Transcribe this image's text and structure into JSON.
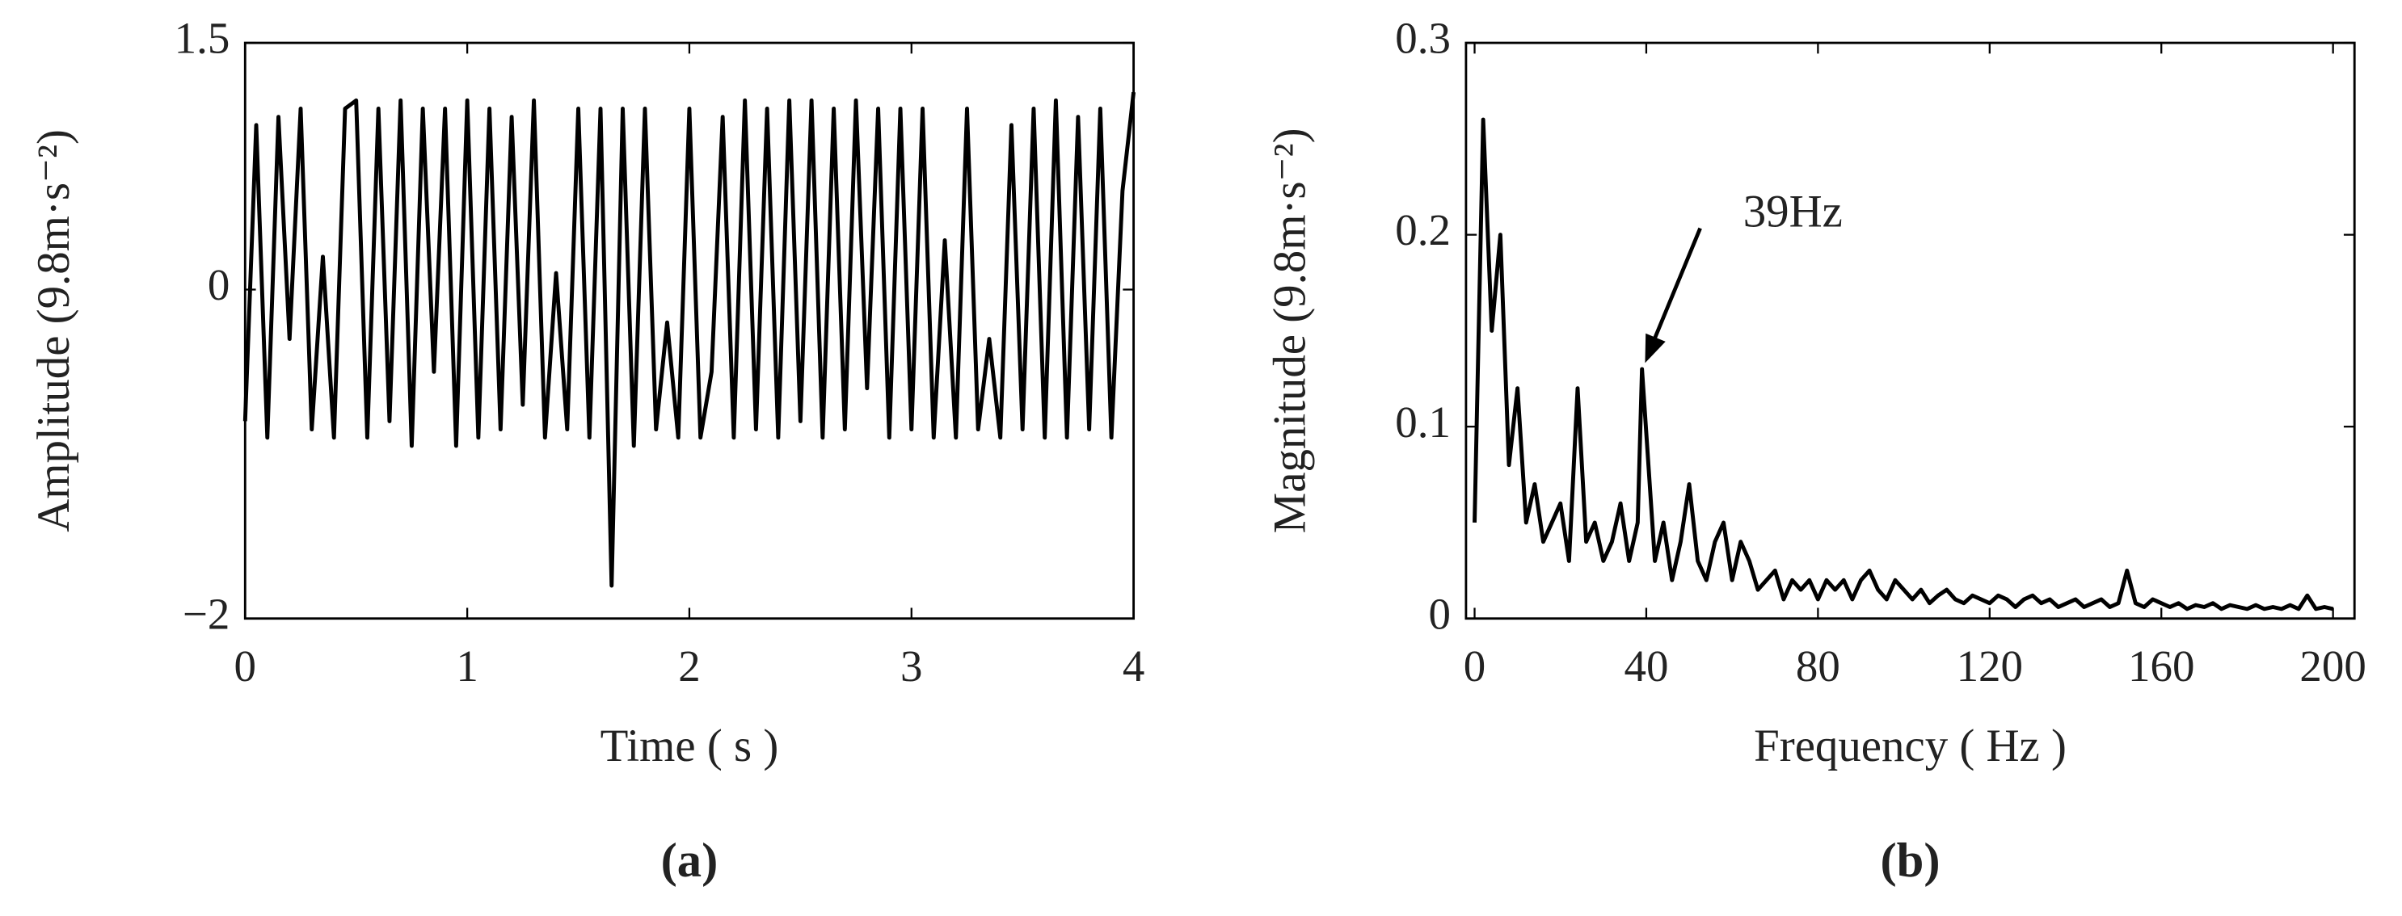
{
  "chart_data": [
    {
      "type": "line",
      "panel_label": "(a)",
      "xlabel": "Time ( s )",
      "ylabel": "Amplitude (9.8m·s⁻²)",
      "xlim": [
        0,
        4
      ],
      "ylim": [
        -2,
        1.5
      ],
      "xticks": [
        0,
        1,
        2,
        3,
        4
      ],
      "yticks": [
        {
          "value": -2,
          "label": "−2"
        },
        0,
        1.5
      ],
      "color": "#000000",
      "x": [
        0,
        0.05,
        0.1,
        0.15,
        0.2,
        0.25,
        0.3,
        0.35,
        0.4,
        0.45,
        0.5,
        0.55,
        0.6,
        0.65,
        0.7,
        0.75,
        0.8,
        0.85,
        0.9,
        0.95,
        1.0,
        1.05,
        1.1,
        1.15,
        1.2,
        1.25,
        1.3,
        1.35,
        1.4,
        1.45,
        1.5,
        1.55,
        1.6,
        1.65,
        1.7,
        1.75,
        1.8,
        1.85,
        1.9,
        1.95,
        2.0,
        2.05,
        2.1,
        2.15,
        2.2,
        2.25,
        2.3,
        2.35,
        2.4,
        2.45,
        2.5,
        2.55,
        2.6,
        2.65,
        2.7,
        2.75,
        2.8,
        2.85,
        2.9,
        2.95,
        3.0,
        3.05,
        3.1,
        3.15,
        3.2,
        3.25,
        3.3,
        3.35,
        3.4,
        3.45,
        3.5,
        3.55,
        3.6,
        3.65,
        3.7,
        3.75,
        3.8,
        3.85,
        3.9,
        3.95,
        4.0
      ],
      "values": [
        -0.8,
        1.0,
        -0.9,
        1.05,
        -0.3,
        1.1,
        -0.85,
        0.2,
        -0.9,
        1.1,
        1.15,
        -0.9,
        1.1,
        -0.8,
        1.15,
        -0.95,
        1.1,
        -0.5,
        1.1,
        -0.95,
        1.15,
        -0.9,
        1.1,
        -0.85,
        1.05,
        -0.7,
        1.15,
        -0.9,
        0.1,
        -0.85,
        1.1,
        -0.9,
        1.1,
        -1.8,
        1.1,
        -0.95,
        1.1,
        -0.85,
        -0.2,
        -0.9,
        1.1,
        -0.9,
        -0.5,
        1.05,
        -0.9,
        1.15,
        -0.85,
        1.1,
        -0.9,
        1.15,
        -0.8,
        1.15,
        -0.9,
        1.1,
        -0.85,
        1.15,
        -0.6,
        1.1,
        -0.9,
        1.1,
        -0.85,
        1.1,
        -0.9,
        0.3,
        -0.9,
        1.1,
        -0.85,
        -0.3,
        -0.9,
        1.0,
        -0.85,
        1.1,
        -0.9,
        1.15,
        -0.9,
        1.05,
        -0.85,
        1.1,
        -0.9,
        0.6,
        1.2
      ]
    },
    {
      "type": "line",
      "panel_label": "(b)",
      "xlabel": "Frequency ( Hz )",
      "ylabel": "Magnitude (9.8m·s⁻²)",
      "xlim": [
        -2,
        205
      ],
      "ylim": [
        0,
        0.3
      ],
      "xticks": [
        0,
        40,
        80,
        120,
        160,
        200
      ],
      "yticks": [
        0,
        0.1,
        0.2,
        0.3
      ],
      "color": "#000000",
      "annotation": {
        "text": "39Hz",
        "x": 39,
        "y": 0.13
      },
      "x": [
        0,
        2,
        4,
        6,
        8,
        10,
        12,
        14,
        16,
        18,
        20,
        22,
        24,
        26,
        28,
        30,
        32,
        34,
        36,
        38,
        39,
        42,
        44,
        46,
        48,
        50,
        52,
        54,
        56,
        58,
        60,
        62,
        64,
        66,
        68,
        70,
        72,
        74,
        76,
        78,
        80,
        82,
        84,
        86,
        88,
        90,
        92,
        94,
        96,
        98,
        100,
        102,
        104,
        106,
        108,
        110,
        112,
        114,
        116,
        118,
        120,
        122,
        124,
        126,
        128,
        130,
        132,
        134,
        136,
        138,
        140,
        142,
        144,
        146,
        148,
        150,
        152,
        154,
        156,
        158,
        160,
        162,
        164,
        166,
        168,
        170,
        172,
        174,
        176,
        178,
        180,
        182,
        184,
        186,
        188,
        190,
        192,
        194,
        196,
        198,
        200
      ],
      "values": [
        0.05,
        0.26,
        0.15,
        0.2,
        0.08,
        0.12,
        0.05,
        0.07,
        0.04,
        0.05,
        0.06,
        0.03,
        0.12,
        0.04,
        0.05,
        0.03,
        0.04,
        0.06,
        0.03,
        0.05,
        0.13,
        0.03,
        0.05,
        0.02,
        0.04,
        0.07,
        0.03,
        0.02,
        0.04,
        0.05,
        0.02,
        0.04,
        0.03,
        0.015,
        0.02,
        0.025,
        0.01,
        0.02,
        0.015,
        0.02,
        0.01,
        0.02,
        0.015,
        0.02,
        0.01,
        0.02,
        0.025,
        0.015,
        0.01,
        0.02,
        0.015,
        0.01,
        0.015,
        0.008,
        0.012,
        0.015,
        0.01,
        0.008,
        0.012,
        0.01,
        0.008,
        0.012,
        0.01,
        0.006,
        0.01,
        0.012,
        0.008,
        0.01,
        0.006,
        0.008,
        0.01,
        0.006,
        0.008,
        0.01,
        0.006,
        0.008,
        0.025,
        0.008,
        0.006,
        0.01,
        0.008,
        0.006,
        0.008,
        0.005,
        0.007,
        0.006,
        0.008,
        0.005,
        0.007,
        0.006,
        0.005,
        0.007,
        0.005,
        0.006,
        0.005,
        0.007,
        0.005,
        0.012,
        0.005,
        0.006,
        0.005
      ]
    }
  ]
}
